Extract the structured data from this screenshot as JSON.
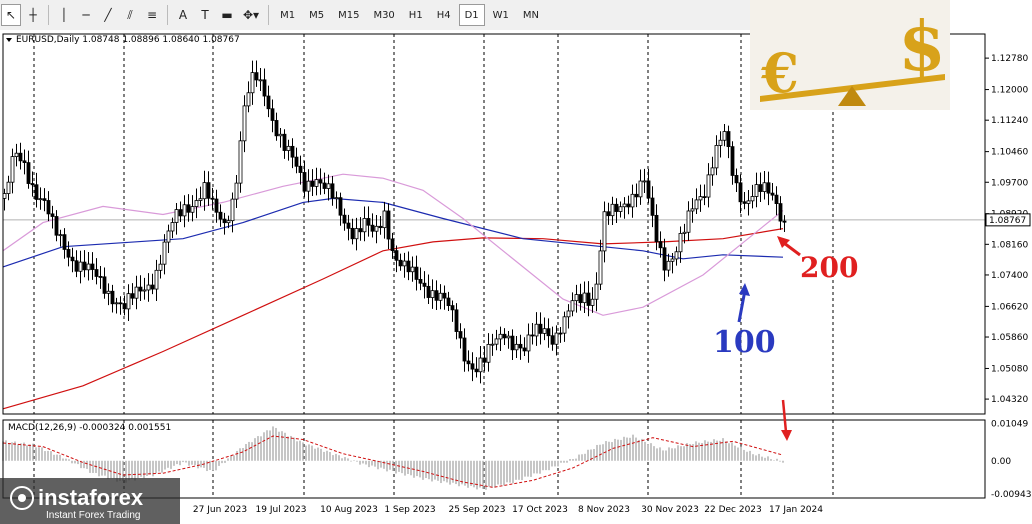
{
  "toolbar": {
    "tools": [
      {
        "name": "cursor-tool-button",
        "icon": "cursor-icon",
        "glyph": "↖"
      },
      {
        "name": "crosshair-tool-button",
        "icon": "crosshair-icon",
        "glyph": "┼"
      },
      {
        "sep": true
      },
      {
        "name": "vertical-line-button",
        "icon": "vertical-line-icon",
        "glyph": "│"
      },
      {
        "name": "horizontal-line-button",
        "icon": "horizontal-line-icon",
        "glyph": "─"
      },
      {
        "name": "trend-line-button",
        "icon": "trend-line-icon",
        "glyph": "╱"
      },
      {
        "name": "equidistant-channel-button",
        "icon": "channel-icon",
        "glyph": "⫽"
      },
      {
        "name": "fibonacci-button",
        "icon": "fibonacci-icon",
        "glyph": "≡"
      },
      {
        "sep": true
      },
      {
        "name": "text-tool-button",
        "icon": "text-icon",
        "glyph": "A"
      },
      {
        "name": "text-label-button",
        "icon": "text-label-icon",
        "glyph": "T"
      },
      {
        "name": "rectangle-button",
        "icon": "rectangle-icon",
        "glyph": "▬"
      },
      {
        "name": "arrows-button",
        "icon": "arrows-icon",
        "glyph": "✥▾"
      }
    ],
    "timeframes": [
      "M1",
      "M5",
      "M15",
      "M30",
      "H1",
      "H4",
      "D1",
      "W1",
      "MN"
    ],
    "active_timeframe": "D1"
  },
  "chart_header": {
    "symbol_ohlc": "EURUSD,Daily  1.08748 1.08896 1.08640 1.08767"
  },
  "price_axis": {
    "labels": [
      "1.12780",
      "1.12000",
      "1.11240",
      "1.10460",
      "1.09700",
      "1.08920",
      "1.08160",
      "1.07400",
      "1.06620",
      "1.05860",
      "1.05080",
      "1.04320"
    ],
    "current_price": "1.08767"
  },
  "time_axis": {
    "labels": [
      "27 Jun 2023",
      "19 Jul 2023",
      "10 Aug 2023",
      "1 Sep 2023",
      "25 Sep 2023",
      "17 Oct 2023",
      "8 Nov 2023",
      "30 Nov 2023",
      "22 Dec 2023",
      "17 Jan 2024"
    ]
  },
  "macd": {
    "title": "MACD(12,26,9) -0.000324 0.001551",
    "axis_labels": [
      "0.01049",
      "0.00",
      "-0.00943"
    ]
  },
  "annotations": {
    "ma200_label": "200",
    "ma100_label": "100"
  },
  "promo": {
    "euro_symbol": "€",
    "dollar_symbol": "$"
  },
  "watermark": {
    "brand": "instaforex",
    "tagline": "Instant Forex Trading"
  },
  "colors": {
    "ma200": "#d01010",
    "ma100": "#1c2bb0",
    "ma50": "#d99ad9",
    "annotation_red": "#e02020",
    "annotation_blue": "#2a3ac0",
    "candles": "#000000",
    "gold": "#d8a21a"
  },
  "chart_data": {
    "type": "candlestick",
    "symbol": "EURUSD",
    "timeframe": "Daily",
    "ylim": [
      1.0395,
      1.1318
    ],
    "x_tick_labels": [
      "27 Jun 2023",
      "19 Jul 2023",
      "10 Aug 2023",
      "1 Sep 2023",
      "25 Sep 2023",
      "17 Oct 2023",
      "8 Nov 2023",
      "30 Nov 2023",
      "22 Dec 2023",
      "17 Jan 2024"
    ],
    "close_path": [
      [
        0,
        1.093
      ],
      [
        10,
        1.103
      ],
      [
        20,
        1.101
      ],
      [
        30,
        1.096
      ],
      [
        40,
        1.092
      ],
      [
        50,
        1.084
      ],
      [
        60,
        1.081
      ],
      [
        70,
        1.078
      ],
      [
        80,
        1.076
      ],
      [
        90,
        1.073
      ],
      [
        100,
        1.071
      ],
      [
        110,
        1.069
      ],
      [
        120,
        1.066
      ],
      [
        130,
        1.068
      ],
      [
        140,
        1.071
      ],
      [
        150,
        1.074
      ],
      [
        160,
        1.081
      ],
      [
        170,
        1.087
      ],
      [
        180,
        1.091
      ],
      [
        190,
        1.093
      ],
      [
        200,
        1.095
      ],
      [
        210,
        1.089
      ],
      [
        220,
        1.087
      ],
      [
        230,
        1.095
      ],
      [
        240,
        1.115
      ],
      [
        250,
        1.123
      ],
      [
        260,
        1.12
      ],
      [
        270,
        1.112
      ],
      [
        280,
        1.105
      ],
      [
        290,
        1.101
      ],
      [
        300,
        1.097
      ],
      [
        310,
        1.099
      ],
      [
        320,
        1.095
      ],
      [
        330,
        1.092
      ],
      [
        340,
        1.088
      ],
      [
        350,
        1.085
      ],
      [
        360,
        1.086
      ],
      [
        370,
        1.083
      ],
      [
        380,
        1.09
      ],
      [
        390,
        1.079
      ],
      [
        400,
        1.075
      ],
      [
        410,
        1.073
      ],
      [
        420,
        1.072
      ],
      [
        430,
        1.07
      ],
      [
        440,
        1.067
      ],
      [
        450,
        1.062
      ],
      [
        460,
        1.055
      ],
      [
        470,
        1.051
      ],
      [
        480,
        1.052
      ],
      [
        490,
        1.057
      ],
      [
        500,
        1.061
      ],
      [
        510,
        1.057
      ],
      [
        520,
        1.054
      ],
      [
        530,
        1.06
      ],
      [
        540,
        1.062
      ],
      [
        550,
        1.058
      ],
      [
        560,
        1.061
      ],
      [
        570,
        1.068
      ],
      [
        580,
        1.07
      ],
      [
        590,
        1.068
      ],
      [
        600,
        1.087
      ],
      [
        610,
        1.09
      ],
      [
        620,
        1.093
      ],
      [
        630,
        1.094
      ],
      [
        640,
        1.096
      ],
      [
        650,
        1.085
      ],
      [
        660,
        1.078
      ],
      [
        670,
        1.079
      ],
      [
        680,
        1.084
      ],
      [
        690,
        1.092
      ],
      [
        700,
        1.096
      ],
      [
        710,
        1.104
      ],
      [
        720,
        1.108
      ],
      [
        730,
        1.097
      ],
      [
        740,
        1.093
      ],
      [
        750,
        1.095
      ],
      [
        760,
        1.094
      ],
      [
        770,
        1.093
      ],
      [
        780,
        1.0877
      ]
    ],
    "ma200": [
      [
        0,
        1.0408
      ],
      [
        80,
        1.0465
      ],
      [
        160,
        1.055
      ],
      [
        240,
        1.064
      ],
      [
        320,
        1.073
      ],
      [
        380,
        1.08
      ],
      [
        430,
        1.0822
      ],
      [
        480,
        1.0832
      ],
      [
        540,
        1.083
      ],
      [
        600,
        1.0817
      ],
      [
        660,
        1.0822
      ],
      [
        720,
        1.083
      ],
      [
        780,
        1.0855
      ]
    ],
    "ma100": [
      [
        0,
        1.076
      ],
      [
        60,
        1.081
      ],
      [
        120,
        1.082
      ],
      [
        180,
        1.083
      ],
      [
        240,
        1.087
      ],
      [
        300,
        1.092
      ],
      [
        330,
        1.093
      ],
      [
        380,
        1.092
      ],
      [
        440,
        1.088
      ],
      [
        520,
        1.083
      ],
      [
        600,
        1.081
      ],
      [
        640,
        1.08
      ],
      [
        680,
        1.078
      ],
      [
        720,
        1.079
      ],
      [
        780,
        1.0784
      ]
    ],
    "ma50": [
      [
        0,
        1.08
      ],
      [
        40,
        1.087
      ],
      [
        100,
        1.091
      ],
      [
        160,
        1.089
      ],
      [
        220,
        1.092
      ],
      [
        280,
        1.096
      ],
      [
        340,
        1.099
      ],
      [
        380,
        1.098
      ],
      [
        420,
        1.095
      ],
      [
        460,
        1.088
      ],
      [
        520,
        1.076
      ],
      [
        560,
        1.068
      ],
      [
        600,
        1.064
      ],
      [
        640,
        1.066
      ],
      [
        700,
        1.074
      ],
      [
        740,
        1.082
      ],
      [
        780,
        1.09
      ]
    ],
    "macd_histogram": [
      [
        0,
        0.0055
      ],
      [
        30,
        0.0045
      ],
      [
        60,
        0.001
      ],
      [
        90,
        -0.0035
      ],
      [
        120,
        -0.006
      ],
      [
        150,
        -0.004
      ],
      [
        180,
        -0.0005
      ],
      [
        210,
        -0.003
      ],
      [
        240,
        0.004
      ],
      [
        270,
        0.0095
      ],
      [
        300,
        0.005
      ],
      [
        330,
        0.002
      ],
      [
        360,
        -0.001
      ],
      [
        390,
        -0.003
      ],
      [
        420,
        -0.005
      ],
      [
        450,
        -0.0065
      ],
      [
        480,
        -0.008
      ],
      [
        510,
        -0.006
      ],
      [
        540,
        -0.003
      ],
      [
        570,
        0.0005
      ],
      [
        600,
        0.005
      ],
      [
        630,
        0.007
      ],
      [
        660,
        0.003
      ],
      [
        690,
        0.005
      ],
      [
        720,
        0.006
      ],
      [
        750,
        0.002
      ],
      [
        780,
        -0.0003
      ]
    ],
    "macd_signal": [
      [
        0,
        0.005
      ],
      [
        40,
        0.004
      ],
      [
        80,
        -0.0005
      ],
      [
        120,
        -0.004
      ],
      [
        160,
        -0.0035
      ],
      [
        200,
        -0.001
      ],
      [
        240,
        0.0025
      ],
      [
        270,
        0.007
      ],
      [
        300,
        0.006
      ],
      [
        340,
        0.002
      ],
      [
        380,
        -0.0005
      ],
      [
        420,
        -0.003
      ],
      [
        460,
        -0.006
      ],
      [
        490,
        -0.0075
      ],
      [
        530,
        -0.0055
      ],
      [
        570,
        -0.002
      ],
      [
        610,
        0.0035
      ],
      [
        650,
        0.0065
      ],
      [
        690,
        0.004
      ],
      [
        730,
        0.0055
      ],
      [
        780,
        0.0016
      ]
    ]
  }
}
